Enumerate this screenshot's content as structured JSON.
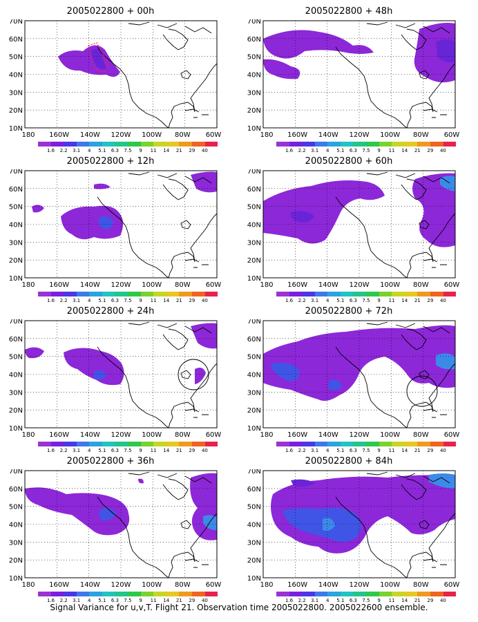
{
  "figure": {
    "caption": "Signal Variance for u,v,T. Flight 21. Observation time 2005022800. 2005022600 ensemble."
  },
  "axes": {
    "y_ticks": [
      "70N",
      "60N",
      "50N",
      "40N",
      "30N",
      "20N",
      "10N"
    ],
    "x_ticks": [
      "180",
      "160W",
      "140W",
      "120W",
      "100W",
      "80W",
      "60W"
    ]
  },
  "colorbar": {
    "labels": [
      "1.6",
      "2.2",
      "3.1",
      "4",
      "5.1",
      "6.3",
      "7.5",
      "9",
      "11",
      "14",
      "21",
      "29",
      "40"
    ],
    "colors": [
      "#9b32d6",
      "#7a1fe0",
      "#4b37e8",
      "#3d79e8",
      "#2aa3e0",
      "#20c4c0",
      "#22c58a",
      "#2ec84a",
      "#7ad22c",
      "#c7d624",
      "#e6c820",
      "#ef9a1e",
      "#ee6420",
      "#e8224a"
    ]
  },
  "panels": [
    {
      "title": "2005022800 + 00h"
    },
    {
      "title": "2005022800 + 48h"
    },
    {
      "title": "2005022800 + 12h"
    },
    {
      "title": "2005022800 + 60h"
    },
    {
      "title": "2005022800 + 24h"
    },
    {
      "title": "2005022800 + 72h"
    },
    {
      "title": "2005022800 + 36h"
    },
    {
      "title": "2005022800 + 84h"
    }
  ]
}
